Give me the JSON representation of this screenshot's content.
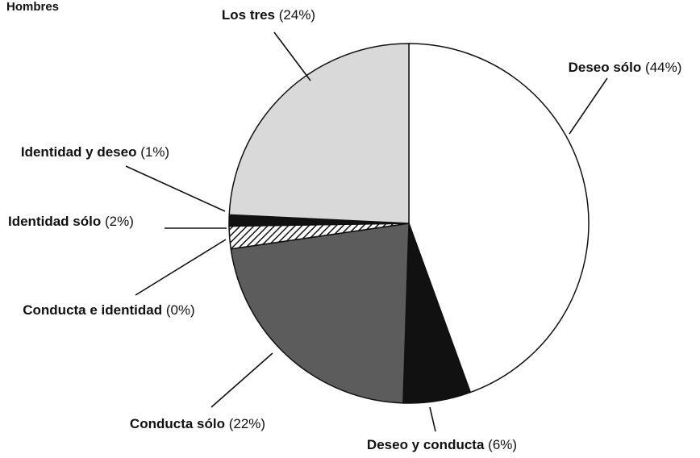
{
  "chart_data": {
    "type": "pie",
    "title": "Hombres",
    "categories": [
      "Deseo sólo",
      "Deseo y conducta",
      "Conducta sólo",
      "Conducta e identidad",
      "Identidad sólo",
      "Identidad y deseo",
      "Los tres"
    ],
    "values": [
      44,
      6,
      22,
      0,
      2,
      1,
      24
    ],
    "value_labels": [
      "(44%)",
      "(6%)",
      "(22%)",
      "(0%)",
      "(2%)",
      "(1%)",
      "(24%)"
    ],
    "colors": [
      "#ffffff",
      "#111111",
      "#5c5c5c",
      "#777777",
      "url(#hatch)",
      "#111111",
      "#d9d9d9"
    ]
  }
}
